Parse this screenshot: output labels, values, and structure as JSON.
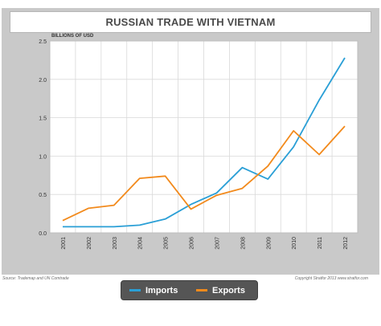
{
  "chart_data": {
    "type": "line",
    "title": "RUSSIAN TRADE WITH VIETNAM",
    "ylabel": "BILLIONS OF USD",
    "xlabel": "",
    "categories": [
      "2001",
      "2002",
      "2003",
      "2004",
      "2005",
      "2006",
      "2007",
      "2008",
      "2009",
      "2010",
      "2011",
      "2012"
    ],
    "series": [
      {
        "name": "Imports",
        "color": "#2a9fd6",
        "values": [
          0.08,
          0.08,
          0.08,
          0.1,
          0.18,
          0.37,
          0.52,
          0.85,
          0.7,
          1.12,
          1.73,
          2.28
        ]
      },
      {
        "name": "Exports",
        "color": "#f28a1c",
        "values": [
          0.16,
          0.32,
          0.36,
          0.71,
          0.74,
          0.31,
          0.49,
          0.58,
          0.87,
          1.33,
          1.02,
          1.39
        ]
      }
    ],
    "ylim": [
      0,
      2.5
    ],
    "yticks": [
      "0.0",
      "0.5",
      "1.0",
      "1.5",
      "2.0",
      "2.5"
    ],
    "grid": true,
    "legend_position": "bottom-center"
  },
  "footer": {
    "source": "Source: Trademap and UN Comtrade",
    "copyright": "Copyright Stratfor 2013  www.stratfor.com"
  }
}
